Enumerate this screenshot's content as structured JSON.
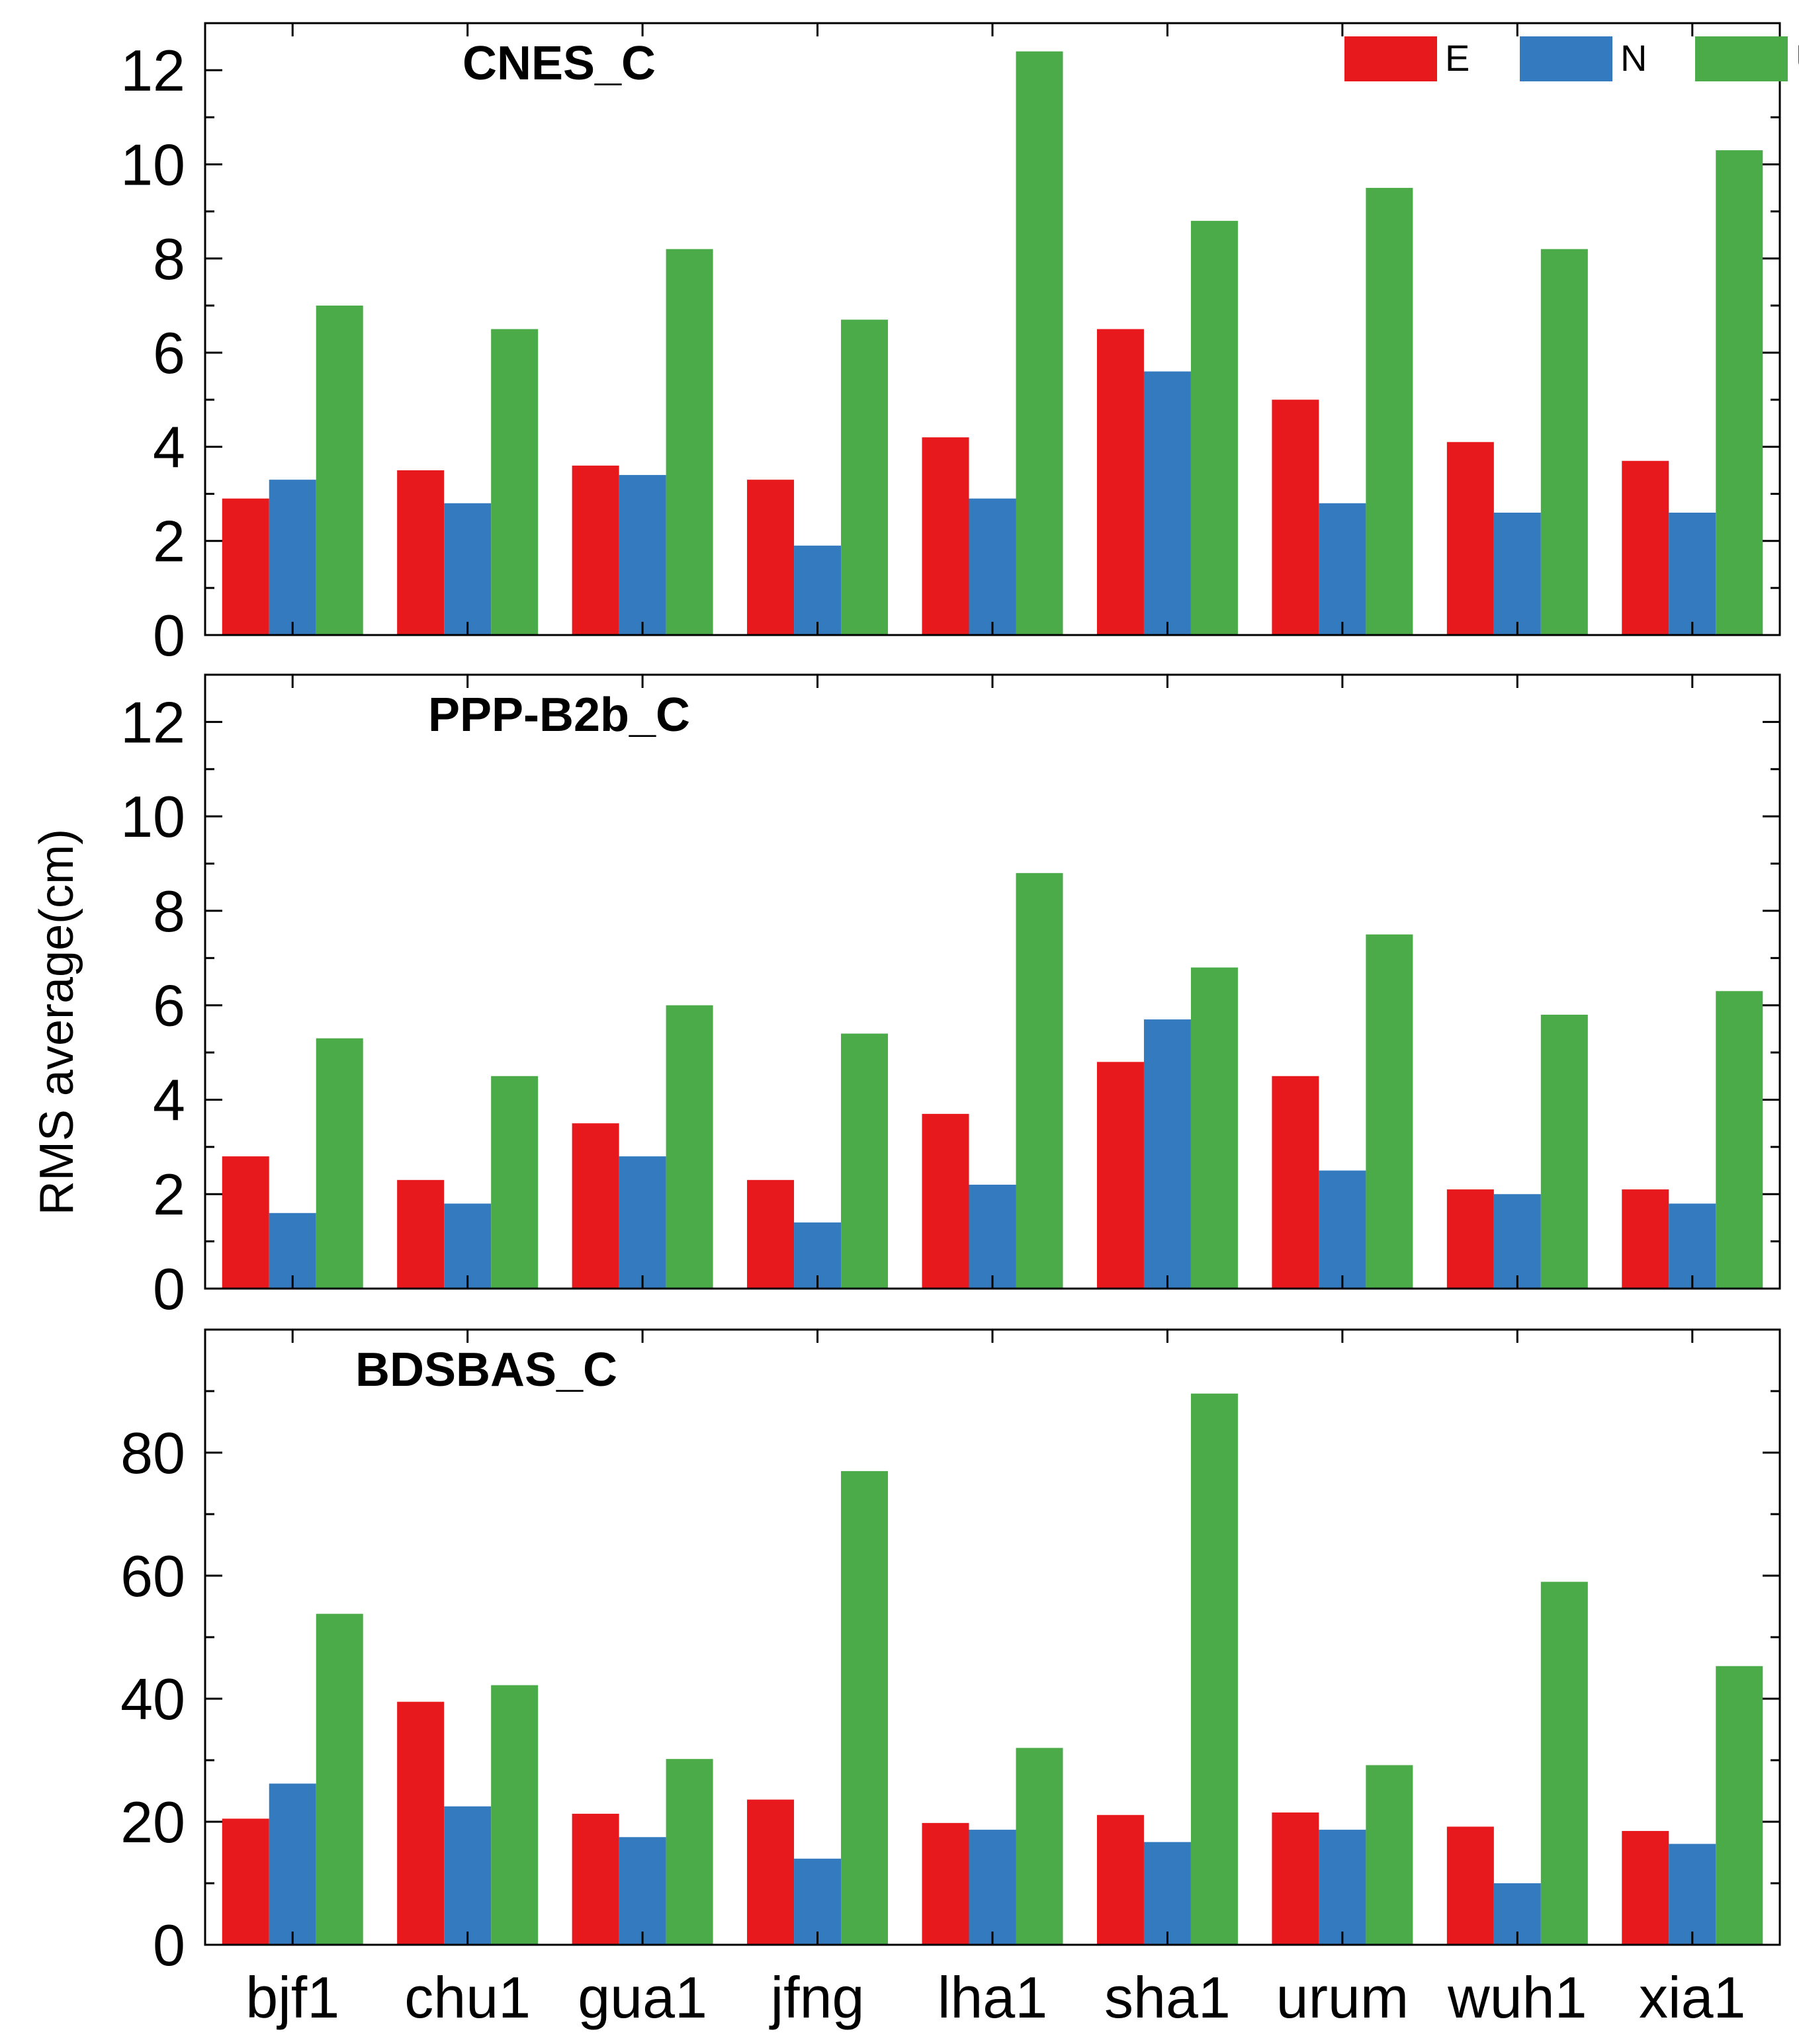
{
  "chart_data": [
    {
      "type": "bar",
      "title": "CNES_C",
      "categories": [
        "bjf1",
        "chu1",
        "gua1",
        "jfng",
        "lha1",
        "sha1",
        "urum",
        "wuh1",
        "xia1"
      ],
      "series": [
        {
          "name": "E",
          "color": "#e8191c",
          "values": [
            2.9,
            3.5,
            3.6,
            3.3,
            4.2,
            6.5,
            5.0,
            4.1,
            3.7
          ]
        },
        {
          "name": "N",
          "color": "#337abf",
          "values": [
            3.3,
            2.8,
            3.4,
            1.9,
            2.9,
            5.6,
            2.8,
            2.6,
            2.6
          ]
        },
        {
          "name": "U",
          "color": "#4bab49",
          "values": [
            7.0,
            6.5,
            8.2,
            6.7,
            12.4,
            8.8,
            9.5,
            8.2,
            10.3
          ]
        }
      ],
      "ylim": [
        0,
        13
      ],
      "yticks": [
        0,
        2,
        4,
        6,
        8,
        10,
        12
      ],
      "ytick_labels": [
        "0",
        "2",
        "4",
        "6",
        "8",
        "10",
        "12"
      ],
      "legend": {
        "position": "top-right",
        "entries": [
          "E",
          "N",
          "U"
        ]
      }
    },
    {
      "type": "bar",
      "title": "PPP-B2b_C",
      "categories": [
        "bjf1",
        "chu1",
        "gua1",
        "jfng",
        "lha1",
        "sha1",
        "urum",
        "wuh1",
        "xia1"
      ],
      "series": [
        {
          "name": "E",
          "color": "#e8191c",
          "values": [
            2.8,
            2.3,
            3.5,
            2.3,
            3.7,
            4.8,
            4.5,
            2.1,
            2.1
          ]
        },
        {
          "name": "N",
          "color": "#337abf",
          "values": [
            1.6,
            1.8,
            2.8,
            1.4,
            2.2,
            5.7,
            2.5,
            2.0,
            1.8
          ]
        },
        {
          "name": "U",
          "color": "#4bab49",
          "values": [
            5.3,
            4.5,
            6.0,
            5.4,
            8.8,
            6.8,
            7.5,
            5.8,
            6.3
          ]
        }
      ],
      "ylim": [
        0,
        13
      ],
      "yticks": [
        0,
        2,
        4,
        6,
        8,
        10,
        12
      ],
      "ytick_labels": [
        "0",
        "2",
        "4",
        "6",
        "8",
        "10",
        "12"
      ]
    },
    {
      "type": "bar",
      "title": "BDSBAS_C",
      "categories": [
        "bjf1",
        "chu1",
        "gua1",
        "jfng",
        "lha1",
        "sha1",
        "urum",
        "wuh1",
        "xia1"
      ],
      "category_labels": [
        "bjf1",
        "chu1",
        "gua1",
        "jfng",
        "lha1",
        "sha1",
        "urum",
        "wuh1",
        "xia1"
      ],
      "series": [
        {
          "name": "E",
          "color": "#e8191c",
          "values": [
            20.5,
            39.5,
            21.3,
            23.6,
            19.8,
            21.1,
            21.5,
            19.2,
            18.5
          ]
        },
        {
          "name": "N",
          "color": "#337abf",
          "values": [
            26.2,
            22.5,
            17.5,
            14.0,
            18.7,
            16.7,
            18.7,
            10.0,
            16.4
          ]
        },
        {
          "name": "U",
          "color": "#4bab49",
          "values": [
            53.8,
            42.2,
            30.2,
            77.0,
            32.0,
            89.6,
            29.2,
            59.0,
            45.3
          ]
        }
      ],
      "ylim": [
        0,
        100
      ],
      "yticks": [
        0,
        20,
        40,
        60,
        80
      ],
      "ytick_labels": [
        "0",
        "20",
        "40",
        "60",
        "80"
      ]
    }
  ],
  "ylabel": "RMS average(cm)"
}
